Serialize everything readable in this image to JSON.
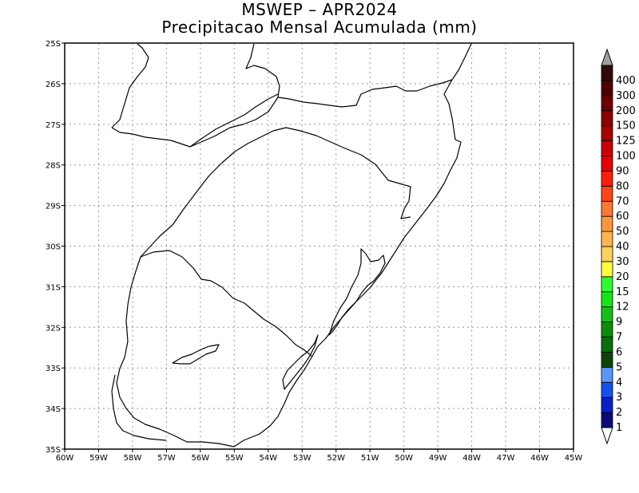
{
  "title": "MSWEP – APR2024",
  "subtitle": "Precipitacao Mensal Acumulada (mm)",
  "map": {
    "lon_range": [
      -60,
      -45
    ],
    "lat_range": [
      -35,
      -25
    ],
    "grid": true,
    "lon_labels": [
      "60W",
      "59W",
      "58W",
      "57W",
      "56W",
      "55W",
      "54W",
      "53W",
      "52W",
      "51W",
      "50W",
      "49W",
      "48W",
      "47W",
      "46W",
      "45W"
    ],
    "lat_labels": [
      "25S",
      "26S",
      "27S",
      "28S",
      "29S",
      "30S",
      "31S",
      "32S",
      "33S",
      "34S",
      "35S"
    ]
  },
  "colorbar": {
    "labels": [
      "1",
      "2",
      "3",
      "4",
      "5",
      "6",
      "7",
      "9",
      "12",
      "15",
      "20",
      "30",
      "40",
      "50",
      "60",
      "70",
      "80",
      "90",
      "100",
      "125",
      "150",
      "200",
      "300",
      "400"
    ],
    "colors": [
      "#0a0a78",
      "#0a1ec8",
      "#1450f0",
      "#5a96ff",
      "#0a460a",
      "#0a6e0a",
      "#0a8c0a",
      "#14be14",
      "#14e614",
      "#2dff2d",
      "#ffff3c",
      "#ffd25a",
      "#ffb450",
      "#ff963c",
      "#ff7832",
      "#ff4614",
      "#ff1e0a",
      "#e60000",
      "#c80000",
      "#aa0000",
      "#8c0000",
      "#6e0000",
      "#500000",
      "#320a0a"
    ],
    "over_color": "#a0a0a0",
    "under_color": "#ffffff"
  }
}
